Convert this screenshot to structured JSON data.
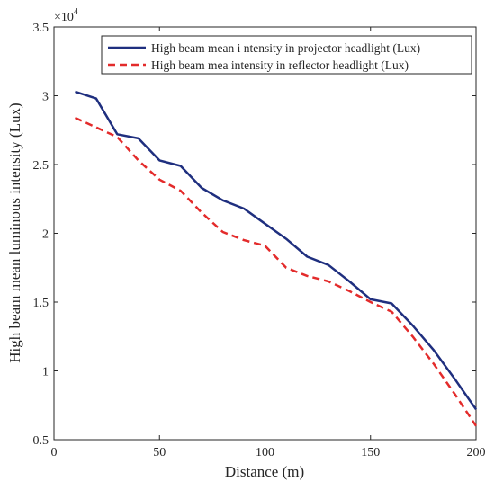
{
  "chart_data": {
    "type": "line",
    "title": "",
    "xlabel": "Distance (m)",
    "ylabel": "High beam mean luminous intensity (Lux)",
    "exponent_label": "×10",
    "exponent_power": "4",
    "xlim": [
      0,
      200
    ],
    "ylim": [
      5000,
      35000
    ],
    "x_ticks": [
      0,
      50,
      100,
      150,
      200
    ],
    "y_ticks": [
      5000,
      10000,
      15000,
      20000,
      25000,
      30000,
      35000
    ],
    "x_tick_labels": [
      "0",
      "50",
      "100",
      "150",
      "200"
    ],
    "y_tick_labels": [
      "0.5",
      "1",
      "1.5",
      "2",
      "2.5",
      "3",
      "3.5"
    ],
    "grid": false,
    "legend_position": "top-right",
    "x": [
      10,
      20,
      30,
      40,
      50,
      60,
      70,
      80,
      90,
      100,
      110,
      120,
      130,
      140,
      150,
      160,
      170,
      180,
      190,
      200
    ],
    "series": [
      {
        "name": "High beam mean i ntensity in projector headlight (Lux)",
        "color": "#1f2f7f",
        "style": "solid",
        "values": [
          30300,
          29800,
          27200,
          26900,
          25300,
          24900,
          23300,
          22400,
          21800,
          20700,
          19600,
          18300,
          17700,
          16500,
          15200,
          14900,
          13300,
          11500,
          9400,
          7200
        ]
      },
      {
        "name": "High beam mea intensity in reflector headlight (Lux)",
        "color": "#e32b2b",
        "style": "dashed",
        "values": [
          28400,
          27700,
          27000,
          25300,
          23900,
          23100,
          21500,
          20100,
          19500,
          19100,
          17500,
          16900,
          16500,
          15800,
          15000,
          14300,
          12500,
          10500,
          8300,
          6000
        ]
      }
    ]
  }
}
